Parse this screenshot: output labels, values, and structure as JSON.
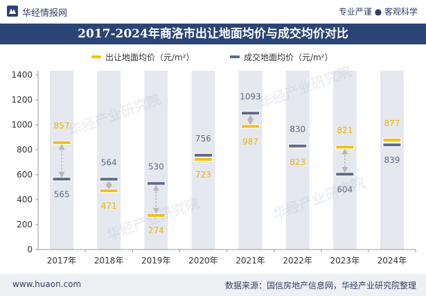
{
  "header": {
    "brand": "华经情报网",
    "slogan": "专业严谨 ● 客观科学"
  },
  "watermarks": [
    "华经产业研究院",
    "华经产业研究院",
    "华经产业研究院",
    "华经产业研究院"
  ],
  "colors": {
    "title_bg": "#2b4475",
    "supply": "#f5c000",
    "deal": "#5f6b85",
    "band": "#e5e8ef",
    "arrow": "#b8b8b8"
  },
  "chart_data": {
    "type": "line",
    "title": "2017-2024年商洛市出让地面均价与成交均价对比",
    "categories": [
      "2017年",
      "2018年",
      "2019年",
      "2020年",
      "2021年",
      "2022年",
      "2023年",
      "2024年"
    ],
    "series": [
      {
        "name": "出让地面均价（元/m²）",
        "values": [
          857,
          471,
          274,
          723,
          987,
          823,
          821,
          877
        ]
      },
      {
        "name": "成交地面均价（元/m²）",
        "values": [
          565,
          564,
          530,
          756,
          1093,
          830,
          604,
          839
        ]
      }
    ],
    "ylim": [
      0,
      1400
    ],
    "yticks": [
      0,
      200,
      400,
      600,
      800,
      1000,
      1200,
      1400
    ],
    "legend": "top"
  },
  "footer": {
    "url": "www.huaon.com",
    "source": "数据来源：国信房地产信息网，华经产业研究院整理"
  }
}
